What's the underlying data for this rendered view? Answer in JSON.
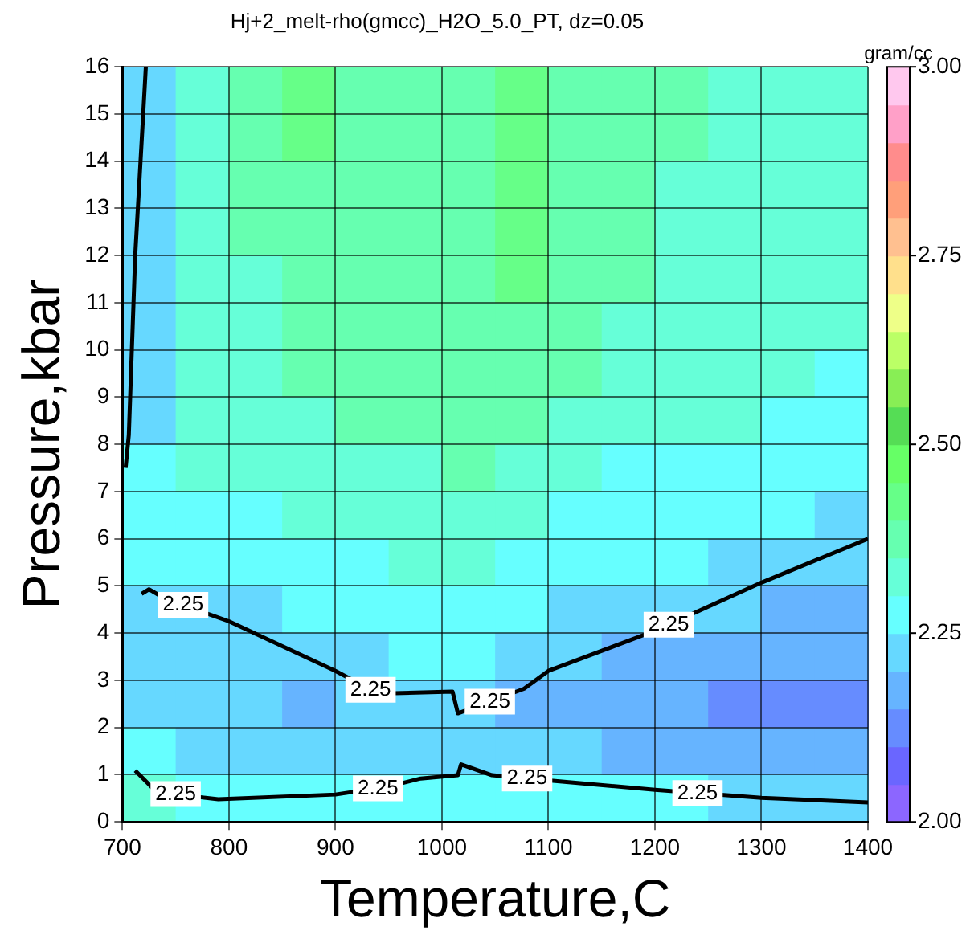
{
  "chart_data": {
    "type": "heatmap",
    "title": "Hj+2_melt-rho(gmcc)_H2O_5.0_PT, dz=0.05",
    "xlabel": "Temperature,C",
    "ylabel": "Pressure,kbar",
    "clabel": "gram/cc",
    "x": [
      725,
      775,
      825,
      875,
      925,
      975,
      1025,
      1075,
      1125,
      1175,
      1225,
      1275,
      1325,
      1375
    ],
    "y": [
      15.5,
      14.5,
      13.5,
      12.5,
      11.5,
      10.5,
      9.5,
      8.5,
      7.5,
      6.5,
      5.5,
      4.5,
      3.5,
      2.5,
      1.5,
      0.5
    ],
    "cells": [
      [
        2.225,
        2.325,
        2.375,
        2.425,
        2.375,
        2.375,
        2.375,
        2.425,
        2.375,
        2.375,
        2.375,
        2.325,
        2.325,
        2.325
      ],
      [
        2.225,
        2.325,
        2.375,
        2.425,
        2.375,
        2.375,
        2.375,
        2.425,
        2.375,
        2.375,
        2.375,
        2.325,
        2.325,
        2.325
      ],
      [
        2.225,
        2.325,
        2.375,
        2.375,
        2.375,
        2.375,
        2.375,
        2.425,
        2.375,
        2.375,
        2.325,
        2.325,
        2.325,
        2.325
      ],
      [
        2.225,
        2.325,
        2.375,
        2.375,
        2.375,
        2.375,
        2.375,
        2.425,
        2.375,
        2.375,
        2.325,
        2.325,
        2.325,
        2.325
      ],
      [
        2.225,
        2.325,
        2.325,
        2.375,
        2.375,
        2.375,
        2.375,
        2.425,
        2.375,
        2.375,
        2.325,
        2.325,
        2.325,
        2.325
      ],
      [
        2.225,
        2.325,
        2.325,
        2.375,
        2.375,
        2.375,
        2.375,
        2.375,
        2.375,
        2.325,
        2.325,
        2.325,
        2.325,
        2.325
      ],
      [
        2.225,
        2.325,
        2.325,
        2.375,
        2.375,
        2.375,
        2.375,
        2.375,
        2.375,
        2.325,
        2.325,
        2.325,
        2.325,
        2.275
      ],
      [
        2.225,
        2.325,
        2.325,
        2.325,
        2.375,
        2.375,
        2.375,
        2.375,
        2.325,
        2.325,
        2.325,
        2.325,
        2.275,
        2.275
      ],
      [
        2.275,
        2.325,
        2.325,
        2.325,
        2.325,
        2.325,
        2.375,
        2.325,
        2.325,
        2.275,
        2.275,
        2.275,
        2.275,
        2.275
      ],
      [
        2.275,
        2.275,
        2.275,
        2.325,
        2.325,
        2.325,
        2.325,
        2.325,
        2.275,
        2.275,
        2.275,
        2.275,
        2.275,
        2.225
      ],
      [
        2.275,
        2.275,
        2.275,
        2.275,
        2.275,
        2.325,
        2.325,
        2.275,
        2.275,
        2.275,
        2.275,
        2.225,
        2.225,
        2.225
      ],
      [
        2.225,
        2.225,
        2.225,
        2.275,
        2.275,
        2.275,
        2.275,
        2.275,
        2.225,
        2.225,
        2.225,
        2.225,
        2.175,
        2.175
      ],
      [
        2.225,
        2.225,
        2.225,
        2.225,
        2.225,
        2.275,
        2.275,
        2.225,
        2.225,
        2.175,
        2.175,
        2.175,
        2.175,
        2.175
      ],
      [
        2.225,
        2.225,
        2.225,
        2.175,
        2.225,
        2.225,
        2.225,
        2.175,
        2.175,
        2.175,
        2.175,
        2.125,
        2.125,
        2.125
      ],
      [
        2.275,
        2.225,
        2.225,
        2.225,
        2.225,
        2.225,
        2.225,
        2.225,
        2.225,
        2.175,
        2.175,
        2.175,
        2.175,
        2.175
      ],
      [
        2.325,
        2.275,
        2.275,
        2.275,
        2.275,
        2.275,
        2.275,
        2.275,
        2.275,
        2.275,
        2.275,
        2.225,
        2.225,
        2.225
      ]
    ],
    "series": [
      {
        "type": "line",
        "color": "#000000",
        "x": [
          718,
          725,
          740,
          800,
          900,
          940,
          1010,
          1015,
          1077,
          1100,
          1200,
          1300,
          1400
        ],
        "values": [
          4.83,
          4.93,
          4.73,
          4.25,
          3.2,
          2.72,
          2.76,
          2.3,
          2.82,
          3.2,
          4.05,
          5.07,
          6.0
        ]
      },
      {
        "type": "line",
        "color": "#000000",
        "x": [
          712,
          730,
          752,
          790,
          900,
          950,
          980,
          1015,
          1018,
          1047,
          1100,
          1200,
          1300,
          1400
        ],
        "values": [
          1.09,
          0.68,
          0.58,
          0.48,
          0.58,
          0.75,
          0.92,
          0.99,
          1.22,
          0.99,
          0.88,
          0.68,
          0.51,
          0.41
        ]
      },
      {
        "type": "line",
        "color": "#000000",
        "x": [
          722,
          712,
          706,
          703
        ],
        "values": [
          16,
          12,
          8.2,
          7.5
        ]
      }
    ],
    "annotations": [
      {
        "text": "2.25",
        "x": 757,
        "y": 4.6
      },
      {
        "text": "2.25",
        "x": 933,
        "y": 2.8
      },
      {
        "text": "2.25",
        "x": 1045,
        "y": 2.55
      },
      {
        "text": "2.25",
        "x": 1213,
        "y": 4.18
      },
      {
        "text": "2.25",
        "x": 750,
        "y": 0.59
      },
      {
        "text": "2.25",
        "x": 940,
        "y": 0.71
      },
      {
        "text": "2.25",
        "x": 1080,
        "y": 0.92
      },
      {
        "text": "2.25",
        "x": 1240,
        "y": 0.61
      }
    ],
    "xlim": [
      700,
      1400
    ],
    "xticks": [
      700,
      800,
      900,
      1000,
      1100,
      1200,
      1300,
      1400
    ],
    "ylim": [
      0,
      16
    ],
    "yticks": [
      0,
      1,
      2,
      3,
      4,
      5,
      6,
      7,
      8,
      9,
      10,
      11,
      12,
      13,
      14,
      15,
      16
    ],
    "clim": [
      2.0,
      3.0
    ],
    "cticks": [
      {
        "value": 2.0,
        "label": "2.00"
      },
      {
        "value": 2.25,
        "label": "2.25"
      },
      {
        "value": 2.5,
        "label": "2.50"
      },
      {
        "value": 2.75,
        "label": "2.75"
      },
      {
        "value": 3.0,
        "label": "3.00"
      }
    ],
    "grid": true,
    "legend": false
  }
}
